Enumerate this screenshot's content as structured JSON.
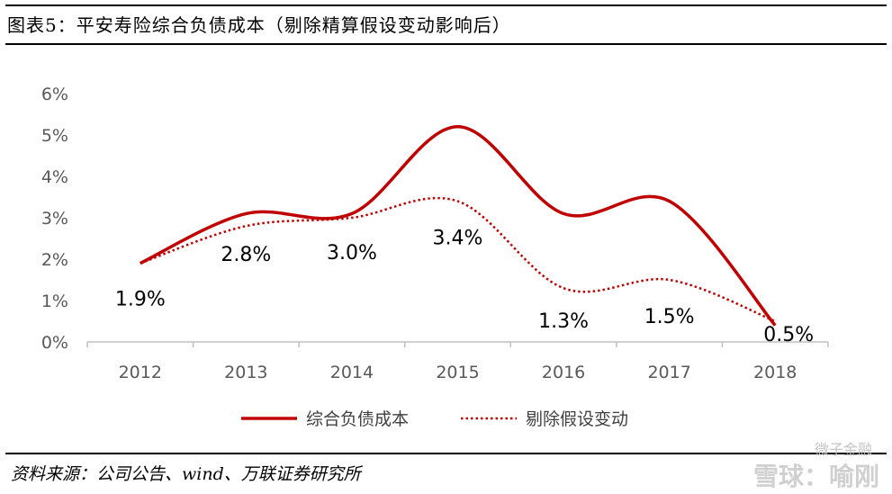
{
  "header": {
    "title": "图表5：平安寿险综合负债成本（剔除精算假设变动影响后）"
  },
  "footer": {
    "source": "资料来源：公司公告、wind、万联证券研究所",
    "watermark_top": "微子金融",
    "watermark_bottom": "雪球：喻刚"
  },
  "colors": {
    "series": "#c00000",
    "axis": "#bfbfbf"
  },
  "chart_data": {
    "type": "line",
    "categories": [
      "2012",
      "2013",
      "2014",
      "2015",
      "2016",
      "2017",
      "2018"
    ],
    "yticks": [
      "0%",
      "1%",
      "2%",
      "3%",
      "4%",
      "5%",
      "6%"
    ],
    "ylim": [
      0,
      6
    ],
    "smooth": true,
    "grid": false,
    "legend_position": "bottom",
    "series": [
      {
        "name": "综合负债成本",
        "style": "solid",
        "values": [
          1.9,
          3.1,
          3.1,
          5.2,
          3.1,
          3.4,
          0.4
        ]
      },
      {
        "name": "剔除假设变动",
        "style": "dotted",
        "values": [
          1.9,
          2.8,
          3.0,
          3.4,
          1.3,
          1.5,
          0.5
        ],
        "labels": [
          "1.9%",
          "2.8%",
          "3.0%",
          "3.4%",
          "1.3%",
          "1.5%",
          "0.5%"
        ]
      }
    ]
  }
}
